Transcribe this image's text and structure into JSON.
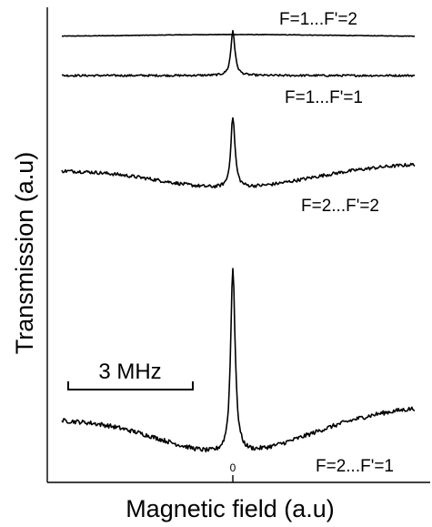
{
  "chart_data": {
    "type": "line",
    "xlabel": "Magnetic field (a.u)",
    "ylabel": "Transmission (a.u)",
    "x_ticks": [
      "0"
    ],
    "scale_bar": {
      "label": "3 MHz",
      "width_mhz": 3
    },
    "grid": false,
    "xlim": [
      -6,
      6
    ],
    "series": [
      {
        "name": "F=1...F'=2",
        "baseline_shape": "broad-hump",
        "peak_height": 0.0,
        "background_amp": 0.06,
        "noise": 0.004
      },
      {
        "name": "F=1...F'=1",
        "baseline_shape": "flat",
        "peak_height": 0.55,
        "peak_width": 0.08,
        "background_amp": 0.0,
        "noise": 0.006
      },
      {
        "name": "F=2...F'=2",
        "baseline_shape": "broad-dip",
        "peak_height": 1.0,
        "peak_width": 0.085,
        "background_amp": 0.3,
        "noise": 0.012
      },
      {
        "name": "F=2...F'=1",
        "baseline_shape": "broad-dip",
        "peak_height": 2.5,
        "peak_width": 0.09,
        "background_amp": 0.55,
        "noise": 0.015
      }
    ]
  }
}
